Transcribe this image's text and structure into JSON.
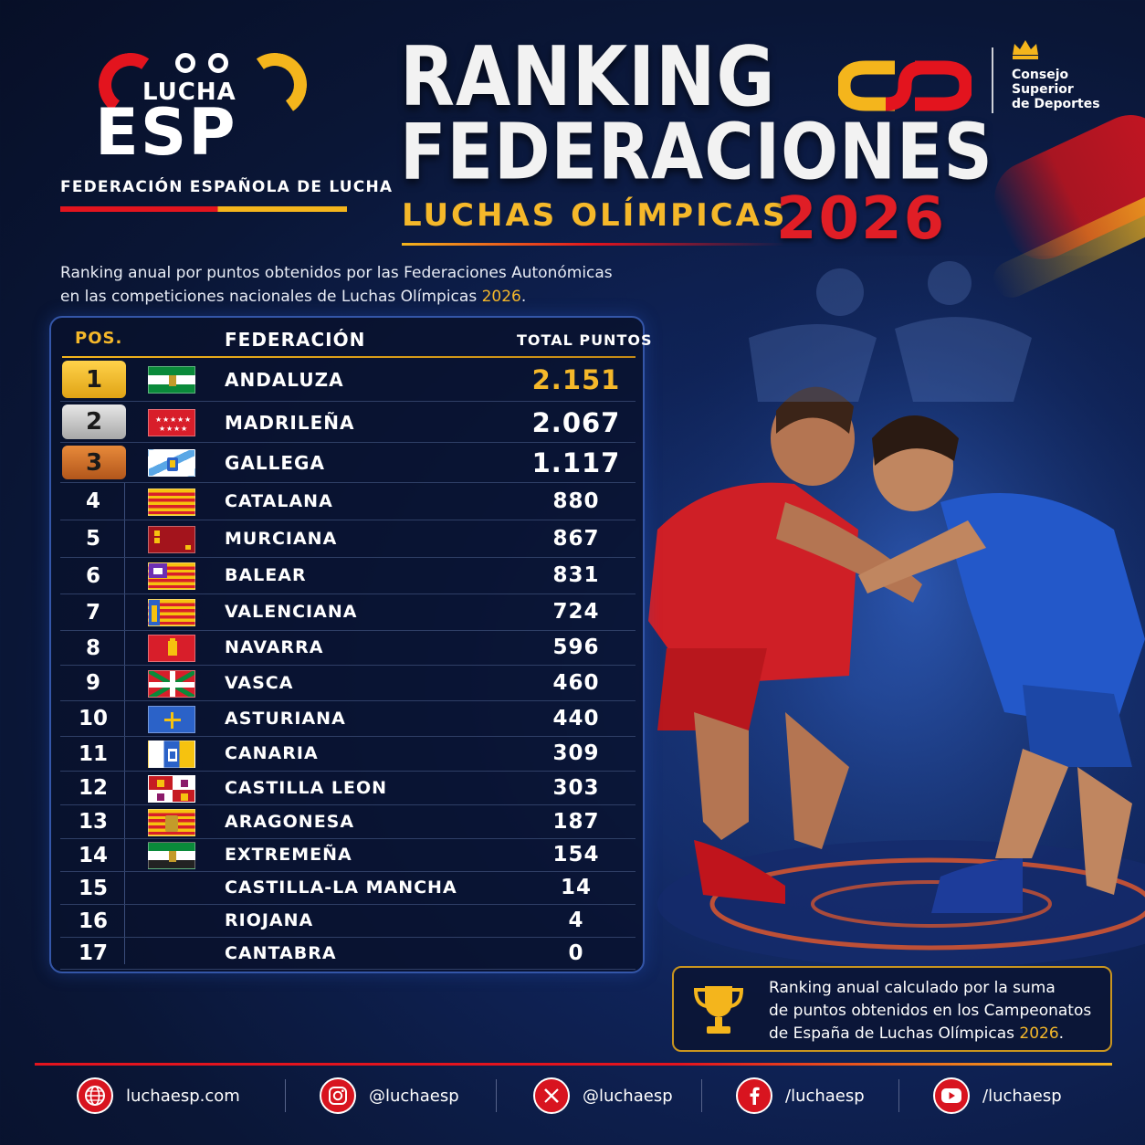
{
  "logo": {
    "lucha": "LUCHA",
    "esp": "ESP",
    "federation": "FEDERACIÓN ESPAÑOLA DE LUCHA"
  },
  "header": {
    "title_line1": "RANKING",
    "title_line2": "FEDERACIONES",
    "subtitle": "LUCHAS OLÍMPICAS",
    "year": "2026"
  },
  "csd": {
    "line1": "Consejo",
    "line2": "Superior",
    "line3": "de Deportes"
  },
  "description": {
    "line1": "Ranking anual por puntos obtenidos por las Federaciones Autonómicas",
    "line2": "en las competiciones nacionales de Luchas Olímpicas ",
    "year": "2026",
    "end": "."
  },
  "table": {
    "headers": {
      "pos": "POS.",
      "federation": "FEDERACIÓN",
      "points": "TOTAL PUNTOS"
    },
    "rows": [
      {
        "pos": "1",
        "name": "ANDALUZA",
        "points": "2.151",
        "flag": "andalucia"
      },
      {
        "pos": "2",
        "name": "MADRILEÑA",
        "points": "2.067",
        "flag": "madrid"
      },
      {
        "pos": "3",
        "name": "GALLEGA",
        "points": "1.117",
        "flag": "galicia"
      },
      {
        "pos": "4",
        "name": "CATALANA",
        "points": "880",
        "flag": "cataluna"
      },
      {
        "pos": "5",
        "name": "MURCIANA",
        "points": "867",
        "flag": "murcia"
      },
      {
        "pos": "6",
        "name": "BALEAR",
        "points": "831",
        "flag": "baleares"
      },
      {
        "pos": "7",
        "name": "VALENCIANA",
        "points": "724",
        "flag": "valencia"
      },
      {
        "pos": "8",
        "name": "NAVARRA",
        "points": "596",
        "flag": "navarra"
      },
      {
        "pos": "9",
        "name": "VASCA",
        "points": "460",
        "flag": "euskadi"
      },
      {
        "pos": "10",
        "name": "ASTURIANA",
        "points": "440",
        "flag": "asturias"
      },
      {
        "pos": "11",
        "name": "CANARIA",
        "points": "309",
        "flag": "canarias"
      },
      {
        "pos": "12",
        "name": "CASTILLA LEON",
        "points": "303",
        "flag": "castilla-leon"
      },
      {
        "pos": "13",
        "name": "ARAGONESA",
        "points": "187",
        "flag": "aragon"
      },
      {
        "pos": "14",
        "name": "EXTREMEÑA",
        "points": "154",
        "flag": "extremadura"
      },
      {
        "pos": "15",
        "name": "CASTILLA-LA MANCHA",
        "points": "14",
        "flag": ""
      },
      {
        "pos": "16",
        "name": "RIOJANA",
        "points": "4",
        "flag": ""
      },
      {
        "pos": "17",
        "name": "CANTABRA",
        "points": "0",
        "flag": ""
      }
    ]
  },
  "note": {
    "line1": "Ranking anual calculado por la suma",
    "line2": "de puntos obtenidos en los Campeonatos",
    "line3": "de España de Luchas Olímpicas ",
    "year": "2026",
    "end": "."
  },
  "footer": {
    "web": "luchaesp.com",
    "instagram": "@luchaesp",
    "x": "@luchaesp",
    "facebook": "/luchaesp",
    "youtube": "/luchaesp"
  },
  "colors": {
    "accent_gold": "#f5b82a",
    "accent_red": "#e01e26",
    "background": "#0a1636"
  }
}
